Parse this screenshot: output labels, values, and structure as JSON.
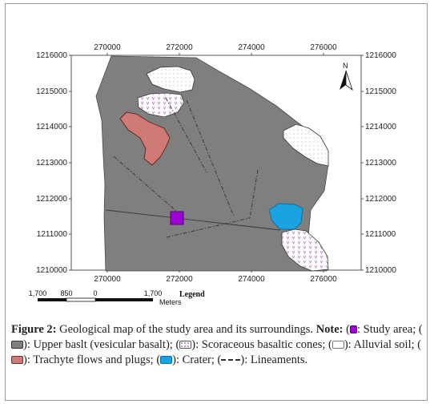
{
  "map": {
    "top_ticks": [
      "270000",
      "272000",
      "274000",
      "276000"
    ],
    "bottom_ticks": [
      "270000",
      "272000",
      "274000",
      "276000"
    ],
    "left_ticks": [
      "1216000",
      "1215000",
      "1214000",
      "1213000",
      "1212000",
      "1211000",
      "1210000"
    ],
    "right_ticks": [
      "1216000",
      "1215000",
      "1214000",
      "1213000",
      "1212000",
      "1211000",
      "1210000"
    ],
    "north_label": "N",
    "scale_labels": [
      "1,700",
      "850",
      "0",
      "1,700"
    ],
    "scale_unit": "Meters",
    "legend_title": "Legend",
    "colors": {
      "upper_basalt": "#7f7f7f",
      "trachyte": "#d07a78",
      "crater": "#1aa3e0",
      "study_area": "#a000d8",
      "scoraceous_pattern": "#c08ac8",
      "lineament": "#3a3a3a"
    }
  },
  "caption": {
    "figure_label": "Figure 2:",
    "title": " Geological map of the study area and its surroundings. ",
    "note_label": "Note:",
    "study_area": ": Study area; (",
    "upper_basalt": "): Upper baslt (vesicular basalt); (",
    "scoraceous": "): Scoraceous basaltic cones; (",
    "alluvial": "): Alluvial soil; (",
    "trachyte": "): Trachyte flows and plugs; (",
    "crater": "): Crater; (",
    "lineaments": "): Lineaments."
  }
}
